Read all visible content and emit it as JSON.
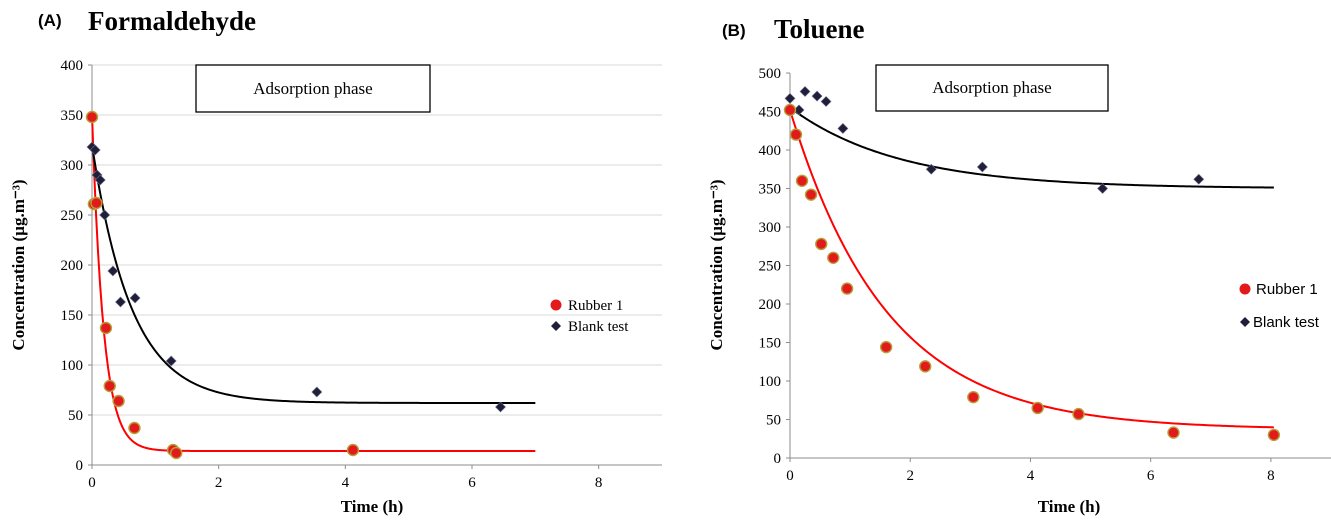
{
  "chart_data": [
    {
      "type": "scatter",
      "panel_label": "(A)",
      "title": "Formaldehyde",
      "xlabel": "Time (h)",
      "ylabel": "Concentration (µg.m⁻³)",
      "xlim": [
        0,
        9
      ],
      "ylim": [
        0,
        400
      ],
      "xticks": [
        0,
        2,
        4,
        6,
        8
      ],
      "yticks": [
        0,
        50,
        100,
        150,
        200,
        250,
        300,
        350,
        400
      ],
      "grid": "horizontal",
      "annotation": "Adsorption phase",
      "legend_position": "right",
      "series": [
        {
          "name": "Rubber 1",
          "marker": "circle",
          "color": "#e31a1c",
          "edge_color": "#b5a13a",
          "points": [
            [
              0.0,
              348
            ],
            [
              0.03,
              261
            ],
            [
              0.07,
              262
            ],
            [
              0.22,
              137
            ],
            [
              0.28,
              79
            ],
            [
              0.42,
              64
            ],
            [
              0.67,
              37
            ],
            [
              1.28,
              15
            ],
            [
              1.33,
              12
            ],
            [
              4.12,
              15
            ]
          ],
          "fit": {
            "c": 14,
            "a": 336,
            "k": 5.5,
            "xmax": 7
          }
        },
        {
          "name": "Blank test",
          "marker": "diamond",
          "color": "#1f1f3a",
          "points": [
            [
              0.0,
              318
            ],
            [
              0.05,
              315
            ],
            [
              0.08,
              290
            ],
            [
              0.13,
              285
            ],
            [
              0.2,
              250
            ],
            [
              0.33,
              194
            ],
            [
              0.45,
              163
            ],
            [
              0.68,
              167
            ],
            [
              1.25,
              104
            ],
            [
              3.55,
              73
            ],
            [
              6.45,
              58
            ]
          ],
          "fit": {
            "c": 62,
            "a": 258,
            "k": 1.6,
            "xmax": 7
          }
        }
      ]
    },
    {
      "type": "scatter",
      "panel_label": "(B)",
      "title": "Toluene",
      "xlabel": "Time (h)",
      "ylabel": "Concentration (µg.m⁻³)",
      "xlim": [
        0,
        9
      ],
      "ylim": [
        0,
        500
      ],
      "xticks": [
        0,
        2,
        4,
        6,
        8
      ],
      "yticks": [
        0,
        50,
        100,
        150,
        200,
        250,
        300,
        350,
        400,
        450,
        500
      ],
      "grid": "off",
      "annotation": "Adsorption phase",
      "legend_position": "right",
      "series": [
        {
          "name": "Rubber 1",
          "marker": "circle",
          "color": "#e31a1c",
          "edge_color": "#b5a13a",
          "points": [
            [
              0.0,
              452
            ],
            [
              0.1,
              420
            ],
            [
              0.2,
              360
            ],
            [
              0.35,
              342
            ],
            [
              0.52,
              278
            ],
            [
              0.72,
              260
            ],
            [
              0.95,
              220
            ],
            [
              1.6,
              144
            ],
            [
              2.25,
              119
            ],
            [
              3.05,
              79
            ],
            [
              4.12,
              65
            ],
            [
              4.8,
              57
            ],
            [
              6.38,
              33
            ],
            [
              8.05,
              30
            ]
          ],
          "fit": {
            "c": 37,
            "a": 415,
            "k": 0.62,
            "xmax": 8.05
          }
        },
        {
          "name": "Blank test",
          "marker": "diamond",
          "color": "#1f1f3a",
          "points": [
            [
              0.0,
              467
            ],
            [
              0.15,
              452
            ],
            [
              0.25,
              476
            ],
            [
              0.45,
              470
            ],
            [
              0.6,
              463
            ],
            [
              0.88,
              428
            ],
            [
              2.35,
              375
            ],
            [
              3.2,
              378
            ],
            [
              5.2,
              350
            ],
            [
              6.8,
              362
            ]
          ],
          "fit": {
            "c": 350,
            "a": 105,
            "k": 0.55,
            "xmax": 8.05
          }
        }
      ]
    }
  ]
}
